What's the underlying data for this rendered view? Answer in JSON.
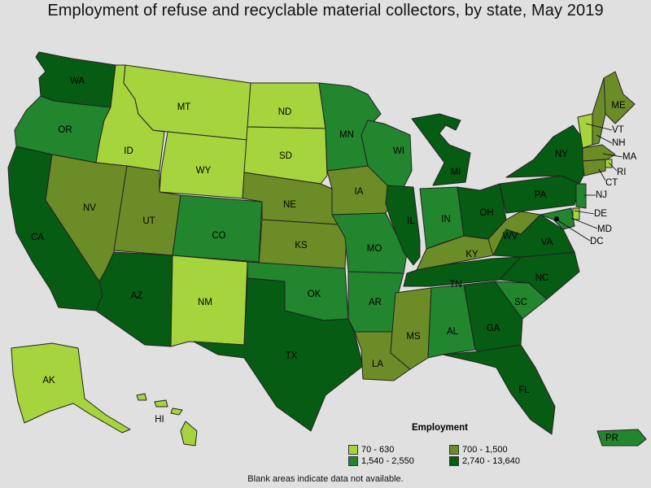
{
  "title": "Employment of refuse and recyclable material collectors, by state, May 2019",
  "footnote": "Blank areas indicate data not available.",
  "legend": {
    "title": "Employment",
    "items": [
      {
        "label": "70 - 630",
        "color": "#a6d43c"
      },
      {
        "label": "700 - 1,500",
        "color": "#6b8c26"
      },
      {
        "label": "1,540 - 2,550",
        "color": "#22862e"
      },
      {
        "label": "2,740 - 13,640",
        "color": "#065c13"
      }
    ]
  },
  "states": [
    {
      "abbr": "WA",
      "class": 3
    },
    {
      "abbr": "OR",
      "class": 2
    },
    {
      "abbr": "CA",
      "class": 3
    },
    {
      "abbr": "ID",
      "class": 0
    },
    {
      "abbr": "NV",
      "class": 1
    },
    {
      "abbr": "MT",
      "class": 0
    },
    {
      "abbr": "WY",
      "class": 0
    },
    {
      "abbr": "UT",
      "class": 1
    },
    {
      "abbr": "AZ",
      "class": 3
    },
    {
      "abbr": "CO",
      "class": 2
    },
    {
      "abbr": "NM",
      "class": 0
    },
    {
      "abbr": "ND",
      "class": 0
    },
    {
      "abbr": "SD",
      "class": 0
    },
    {
      "abbr": "NE",
      "class": 1
    },
    {
      "abbr": "KS",
      "class": 1
    },
    {
      "abbr": "OK",
      "class": 2
    },
    {
      "abbr": "TX",
      "class": 3
    },
    {
      "abbr": "MN",
      "class": 2
    },
    {
      "abbr": "IA",
      "class": 1
    },
    {
      "abbr": "MO",
      "class": 2
    },
    {
      "abbr": "AR",
      "class": 2
    },
    {
      "abbr": "LA",
      "class": 1
    },
    {
      "abbr": "WI",
      "class": 2
    },
    {
      "abbr": "IL",
      "class": 3
    },
    {
      "abbr": "MI",
      "class": 3
    },
    {
      "abbr": "IN",
      "class": 2
    },
    {
      "abbr": "OH",
      "class": 3
    },
    {
      "abbr": "KY",
      "class": 1
    },
    {
      "abbr": "TN",
      "class": 3
    },
    {
      "abbr": "MS",
      "class": 1
    },
    {
      "abbr": "AL",
      "class": 2
    },
    {
      "abbr": "GA",
      "class": 3
    },
    {
      "abbr": "FL",
      "class": 3
    },
    {
      "abbr": "SC",
      "class": 2
    },
    {
      "abbr": "NC",
      "class": 3
    },
    {
      "abbr": "VA",
      "class": 3
    },
    {
      "abbr": "WV",
      "class": 1
    },
    {
      "abbr": "PA",
      "class": 3
    },
    {
      "abbr": "NY",
      "class": 3
    },
    {
      "abbr": "ME",
      "class": 1
    },
    {
      "abbr": "VT",
      "class": 0
    },
    {
      "abbr": "NH",
      "class": 1
    },
    {
      "abbr": "MA",
      "class": 1
    },
    {
      "abbr": "RI",
      "class": 0
    },
    {
      "abbr": "CT",
      "class": 1
    },
    {
      "abbr": "NJ",
      "class": 2
    },
    {
      "abbr": "DE",
      "class": 0
    },
    {
      "abbr": "MD",
      "class": 2
    },
    {
      "abbr": "DC",
      "class": 3
    },
    {
      "abbr": "AK",
      "class": 0
    },
    {
      "abbr": "HI",
      "class": 0
    },
    {
      "abbr": "PR",
      "class": 2
    }
  ]
}
